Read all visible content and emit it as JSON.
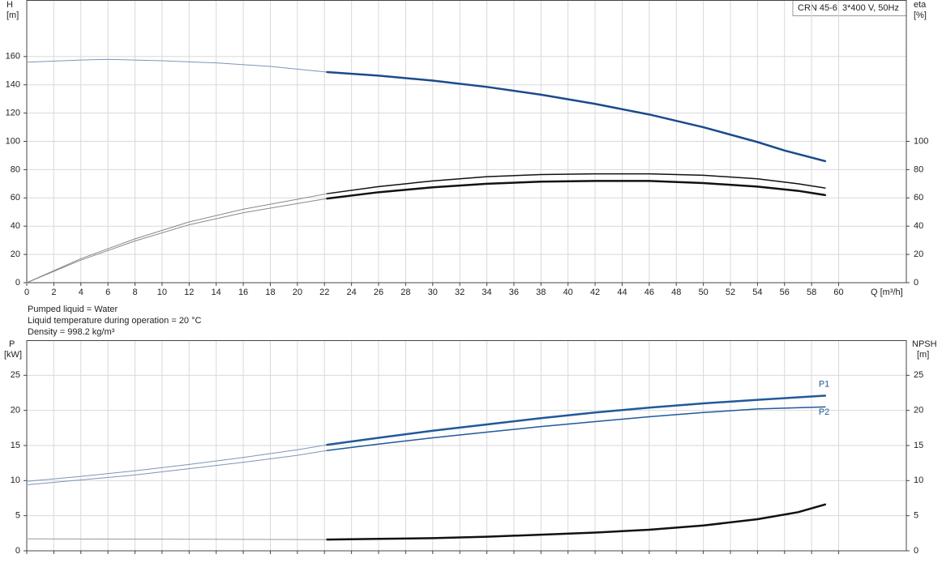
{
  "chart_data": [
    {
      "type": "line",
      "model": "CRN 45-6, 3*400 V, 50Hz",
      "ylabel": "H",
      "yunit": "[m]",
      "y2label": "eta",
      "y2unit": "[%]",
      "xlabel": "Q [m³/h]",
      "xlim": [
        0,
        65
      ],
      "xticks": [
        0,
        2,
        4,
        6,
        8,
        10,
        12,
        14,
        16,
        18,
        20,
        22,
        24,
        26,
        28,
        30,
        32,
        34,
        36,
        38,
        40,
        42,
        44,
        46,
        48,
        50,
        52,
        54,
        56,
        58,
        60
      ],
      "ylim": [
        0,
        200
      ],
      "yticks": [
        0,
        20,
        40,
        60,
        80,
        100,
        120,
        140,
        160
      ],
      "y2lim": [
        0,
        200
      ],
      "y2ticks": [
        0,
        20,
        40,
        60,
        80,
        100
      ],
      "grid": true,
      "show_xtick_labels": true,
      "series": [
        {
          "color": "#7d95b8",
          "line_width": 1,
          "x": [
            0,
            4,
            6,
            10,
            14,
            18,
            22.2
          ],
          "values": [
            156,
            157.5,
            158,
            157,
            155.5,
            153,
            149
          ]
        },
        {
          "color": "#1a4b8c",
          "line_width": 2.5,
          "x": [
            22.2,
            26,
            30,
            34,
            38,
            42,
            46,
            50,
            54,
            56,
            59
          ],
          "values": [
            149,
            146.5,
            143,
            138.5,
            133,
            126.5,
            119,
            110,
            99.5,
            93.5,
            86
          ]
        },
        {
          "color": "#888888",
          "line_width": 1,
          "axis": "y2",
          "x": [
            0,
            4,
            8,
            12,
            16,
            20,
            22.2
          ],
          "values": [
            0,
            17,
            31,
            43,
            52,
            59,
            63
          ]
        },
        {
          "color": "#111111",
          "line_width": 1.5,
          "axis": "y2",
          "x": [
            22.2,
            26,
            30,
            34,
            38,
            42,
            46,
            50,
            54,
            57,
            59
          ],
          "values": [
            63,
            68,
            72,
            75,
            76.5,
            77,
            77,
            76,
            73.5,
            70,
            67
          ]
        },
        {
          "color": "#888888",
          "line_width": 1,
          "axis": "y2",
          "x": [
            0,
            4,
            8,
            12,
            16,
            20,
            22.2
          ],
          "values": [
            0,
            16,
            29.5,
            41,
            49.5,
            56,
            59.5
          ]
        },
        {
          "color": "#111111",
          "line_width": 2.5,
          "axis": "y2",
          "x": [
            22.2,
            26,
            30,
            34,
            38,
            42,
            46,
            50,
            54,
            57,
            59
          ],
          "values": [
            59.5,
            64,
            67.5,
            70,
            71.5,
            72,
            72,
            70.5,
            68,
            65,
            62
          ]
        }
      ]
    },
    {
      "type": "line",
      "notes": [
        "Pumped liquid = Water",
        "Liquid temperature during operation = 20 °C",
        "Density = 998.2 kg/m³"
      ],
      "ylabel": "P",
      "yunit": "[kW]",
      "y2label": "NPSH",
      "y2unit": "[m]",
      "xlim": [
        0,
        65
      ],
      "xticks": [
        0,
        2,
        4,
        6,
        8,
        10,
        12,
        14,
        16,
        18,
        20,
        22,
        24,
        26,
        28,
        30,
        32,
        34,
        36,
        38,
        40,
        42,
        44,
        46,
        48,
        50,
        52,
        54,
        56,
        58,
        60
      ],
      "ylim": [
        0,
        30
      ],
      "yticks": [
        0,
        5,
        10,
        15,
        20,
        25
      ],
      "y2lim": [
        0,
        30
      ],
      "y2ticks": [
        0,
        5,
        10,
        15,
        20,
        25
      ],
      "grid": true,
      "show_xtick_labels": false,
      "series": [
        {
          "color": "#7d95b8",
          "line_width": 1,
          "x": [
            0,
            4,
            8,
            12,
            16,
            20,
            22.2
          ],
          "values": [
            9.9,
            10.6,
            11.4,
            12.3,
            13.3,
            14.4,
            15.1
          ]
        },
        {
          "name": "P1",
          "color": "#1f5a99",
          "line_width": 2.5,
          "x": [
            22.2,
            26,
            30,
            34,
            38,
            42,
            46,
            50,
            54,
            59
          ],
          "values": [
            15.1,
            16.1,
            17.1,
            18.0,
            18.9,
            19.7,
            20.4,
            21.0,
            21.5,
            22.1
          ]
        },
        {
          "color": "#7d95b8",
          "line_width": 1,
          "x": [
            0,
            4,
            8,
            12,
            16,
            20,
            22.2
          ],
          "values": [
            9.4,
            10.1,
            10.8,
            11.7,
            12.6,
            13.6,
            14.3
          ]
        },
        {
          "name": "P2",
          "color": "#1f5a99",
          "line_width": 1.5,
          "x": [
            22.2,
            26,
            30,
            34,
            38,
            42,
            46,
            50,
            54,
            59
          ],
          "values": [
            14.3,
            15.2,
            16.1,
            16.9,
            17.7,
            18.4,
            19.1,
            19.7,
            20.2,
            20.5
          ]
        },
        {
          "color": "#999999",
          "line_width": 1,
          "axis": "y2",
          "x": [
            0,
            22.2
          ],
          "values": [
            1.7,
            1.6
          ]
        },
        {
          "color": "#111111",
          "line_width": 2.5,
          "axis": "y2",
          "x": [
            22.2,
            26,
            30,
            34,
            38,
            42,
            46,
            50,
            54,
            57,
            59
          ],
          "values": [
            1.6,
            1.7,
            1.8,
            2.0,
            2.3,
            2.6,
            3.0,
            3.6,
            4.5,
            5.5,
            6.6
          ]
        }
      ]
    }
  ]
}
